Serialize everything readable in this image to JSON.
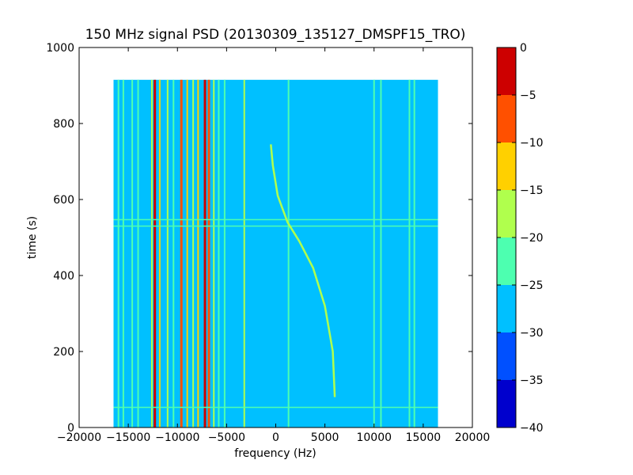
{
  "chart_data": {
    "type": "heatmap",
    "title": "150 MHz signal PSD (20130309_135127_DMSPF15_TRO)",
    "xlabel": "frequency (Hz)",
    "ylabel": "time (s)",
    "xlim": [
      -20000,
      20000
    ],
    "ylim": [
      0,
      1000
    ],
    "xticks": [
      -20000,
      -15000,
      -10000,
      -5000,
      0,
      5000,
      10000,
      15000,
      20000
    ],
    "xtick_labels": [
      "−20000",
      "−15000",
      "−10000",
      "−5000",
      "0",
      "5000",
      "10000",
      "15000",
      "20000"
    ],
    "yticks": [
      0,
      200,
      400,
      600,
      800,
      1000
    ],
    "ytick_labels": [
      "0",
      "200",
      "400",
      "600",
      "800",
      "1000"
    ],
    "data_extent": {
      "freq": [
        -16500,
        16500
      ],
      "time": [
        0,
        915
      ]
    },
    "background_level": -27,
    "colorbar": {
      "levels": [
        -40,
        -35,
        -30,
        -25,
        -20,
        -15,
        -10,
        -5,
        0
      ],
      "tick_labels": [
        "−40",
        "−35",
        "−30",
        "−25",
        "−20",
        "−15",
        "−10",
        "−5",
        "0"
      ],
      "colors": [
        "#0000cd",
        "#0050ff",
        "#00c0ff",
        "#4dffb0",
        "#b0ff4d",
        "#ffd000",
        "#ff5000",
        "#cd0000"
      ]
    },
    "vertical_lines": [
      {
        "freq": -16000,
        "level": -22
      },
      {
        "freq": -15500,
        "level": -22
      },
      {
        "freq": -14600,
        "level": -22
      },
      {
        "freq": -14000,
        "level": -22
      },
      {
        "freq": -12600,
        "level": -17
      },
      {
        "freq": -12300,
        "level": -2
      },
      {
        "freq": -11800,
        "level": -12
      },
      {
        "freq": -11000,
        "level": -17
      },
      {
        "freq": -10400,
        "level": -22
      },
      {
        "freq": -9600,
        "level": -7
      },
      {
        "freq": -9000,
        "level": -12
      },
      {
        "freq": -8400,
        "level": -17
      },
      {
        "freq": -7900,
        "level": -12
      },
      {
        "freq": -7200,
        "level": -2
      },
      {
        "freq": -6800,
        "level": -7
      },
      {
        "freq": -6300,
        "level": -17
      },
      {
        "freq": -5800,
        "level": -22
      },
      {
        "freq": -5200,
        "level": -22
      },
      {
        "freq": -3200,
        "level": -17
      },
      {
        "freq": 1300,
        "level": -22
      },
      {
        "freq": 10000,
        "level": -22
      },
      {
        "freq": 10700,
        "level": -22
      },
      {
        "freq": 13600,
        "level": -22
      },
      {
        "freq": 14100,
        "level": -22
      }
    ],
    "doppler_track": [
      {
        "freq": 6000,
        "time": 80
      },
      {
        "freq": 5800,
        "time": 200
      },
      {
        "freq": 5000,
        "time": 320
      },
      {
        "freq": 3800,
        "time": 420
      },
      {
        "freq": 2400,
        "time": 490
      },
      {
        "freq": 1200,
        "time": 540
      },
      {
        "freq": 200,
        "time": 610
      },
      {
        "freq": -300,
        "time": 690
      },
      {
        "freq": -500,
        "time": 745
      }
    ],
    "horizontal_lines": [
      {
        "time": 53,
        "level": -22
      },
      {
        "time": 530,
        "level": -22
      },
      {
        "time": 547,
        "level": -22
      }
    ]
  }
}
